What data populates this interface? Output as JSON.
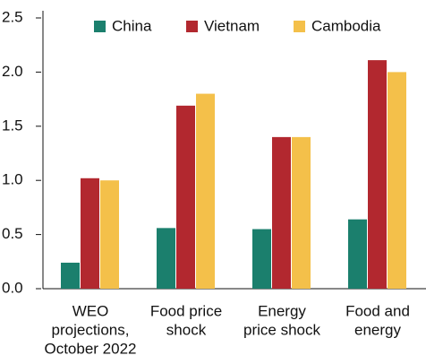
{
  "chart_data": {
    "type": "bar",
    "categories": [
      [
        "WEO",
        "projections,",
        "October 2022"
      ],
      [
        "Food price",
        "shock"
      ],
      [
        "Energy",
        "price shock"
      ],
      [
        "Food and",
        "energy"
      ]
    ],
    "series": [
      {
        "name": "China",
        "color": "#1b7f6d",
        "values": [
          0.24,
          0.56,
          0.55,
          0.64
        ]
      },
      {
        "name": "Vietnam",
        "color": "#b2282f",
        "values": [
          1.02,
          1.69,
          1.4,
          2.11
        ]
      },
      {
        "name": "Cambodia",
        "color": "#f4c04a",
        "values": [
          1.0,
          1.8,
          1.4,
          2.0
        ]
      }
    ],
    "ylim": [
      0,
      2.5
    ],
    "yticks": [
      {
        "value": 0,
        "label": "0.0"
      },
      0.5,
      {
        "value": 1,
        "label": "1.0"
      },
      1.5,
      {
        "value": 2,
        "label": "2.0"
      },
      2.5
    ],
    "grid": false
  }
}
